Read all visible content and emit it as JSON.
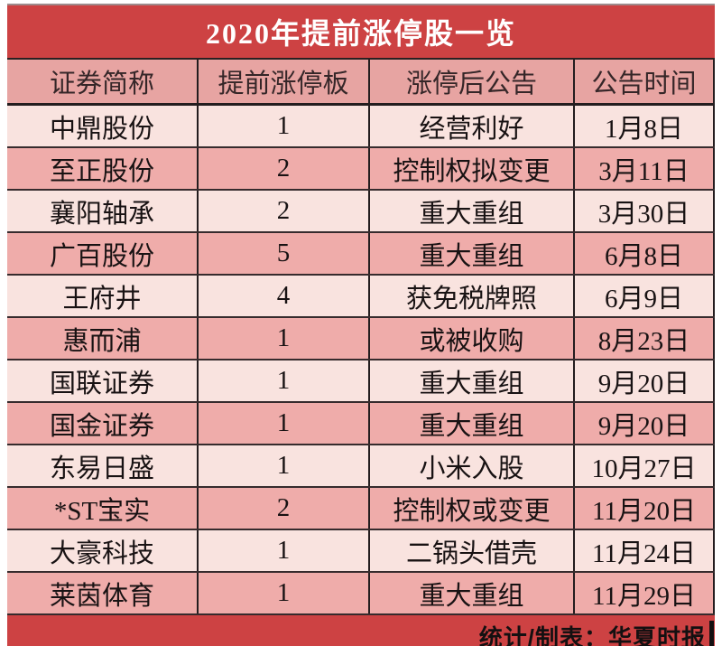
{
  "chart_data": {
    "type": "table",
    "title": "2020年提前涨停股一览",
    "columns": [
      "证券简称",
      "提前涨停板",
      "涨停后公告",
      "公告时间"
    ],
    "rows": [
      [
        "中鼎股份",
        "1",
        "经营利好",
        "1月8日"
      ],
      [
        "至正股份",
        "2",
        "控制权拟变更",
        "3月11日"
      ],
      [
        "襄阳轴承",
        "2",
        "重大重组",
        "3月30日"
      ],
      [
        "广百股份",
        "5",
        "重大重组",
        "6月8日"
      ],
      [
        "王府井",
        "4",
        "获免税牌照",
        "6月9日"
      ],
      [
        "惠而浦",
        "1",
        "或被收购",
        "8月23日"
      ],
      [
        "国联证券",
        "1",
        "重大重组",
        "9月20日"
      ],
      [
        "国金证券",
        "1",
        "重大重组",
        "9月20日"
      ],
      [
        "东易日盛",
        "1",
        "小米入股",
        "10月27日"
      ],
      [
        "*ST宝实",
        "2",
        "控制权或变更",
        "11月20日"
      ],
      [
        "大豪科技",
        "1",
        "二锅头借壳",
        "11月24日"
      ],
      [
        "莱茵体育",
        "1",
        "重大重组",
        "11月29日"
      ]
    ],
    "footer": "统计/制表：华夏时报",
    "layout": "alternating row shading, all cells centered, black rules between columns and rows, no left outer border"
  },
  "colors": {
    "accent_red": "#cd4243",
    "header_pink": "#e7a4a2",
    "row_light": "#f9e3df",
    "row_dark": "#efacaa",
    "border_dark": "#241d1f",
    "title_text": "#ffffff",
    "body_text": "#181213"
  }
}
